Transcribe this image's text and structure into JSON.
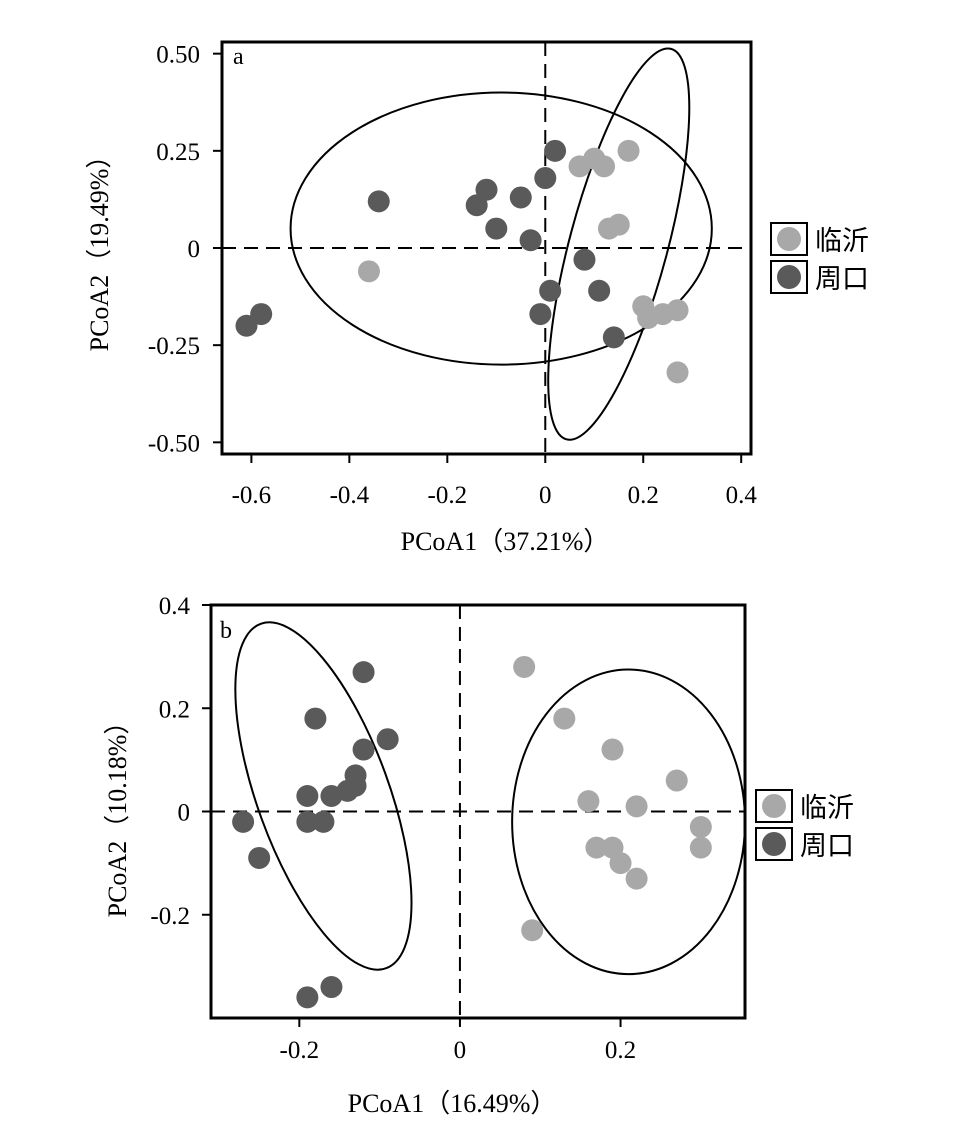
{
  "chart_data": [
    {
      "type": "scatter",
      "panel_label": "a",
      "xlabel": "PCoA1（37.21%）",
      "ylabel": "PCoA2（19.49%）",
      "xlim": [
        -0.66,
        0.42
      ],
      "ylim": [
        -0.53,
        0.53
      ],
      "xticks": [
        -0.6,
        -0.4,
        -0.2,
        0,
        0.2,
        0.4
      ],
      "xtick_labels": [
        "-0.6",
        "-0.4",
        "-0.2",
        "0",
        "0.2",
        "0.4"
      ],
      "yticks": [
        0.5,
        0.25,
        0,
        -0.25,
        -0.5
      ],
      "ytick_labels": [
        "0.50",
        "0.25",
        "0",
        "-0.25",
        "-0.50"
      ],
      "reference_lines": {
        "x": 0,
        "y": 0,
        "style": "dashed"
      },
      "legend": {
        "placement": "right",
        "entries": [
          "临沂",
          "周口"
        ]
      },
      "series": [
        {
          "name": "临沂",
          "color": "#a8a8a8",
          "points": [
            [
              0.07,
              0.21
            ],
            [
              0.1,
              0.23
            ],
            [
              0.12,
              0.21
            ],
            [
              0.17,
              0.25
            ],
            [
              0.13,
              0.05
            ],
            [
              0.15,
              0.06
            ],
            [
              0.2,
              -0.15
            ],
            [
              0.21,
              -0.18
            ],
            [
              0.24,
              -0.17
            ],
            [
              0.27,
              -0.16
            ],
            [
              0.27,
              -0.32
            ],
            [
              -0.36,
              -0.06
            ]
          ]
        },
        {
          "name": "周口",
          "color": "#5a5a5a",
          "points": [
            [
              0.02,
              0.25
            ],
            [
              0.0,
              0.18
            ],
            [
              -0.12,
              0.15
            ],
            [
              -0.05,
              0.13
            ],
            [
              -0.14,
              0.11
            ],
            [
              -0.34,
              0.12
            ],
            [
              -0.1,
              0.05
            ],
            [
              -0.03,
              0.02
            ],
            [
              0.08,
              -0.03
            ],
            [
              0.11,
              -0.11
            ],
            [
              0.01,
              -0.11
            ],
            [
              -0.01,
              -0.17
            ],
            [
              0.14,
              -0.23
            ],
            [
              -0.58,
              -0.17
            ],
            [
              -0.61,
              -0.2
            ]
          ]
        }
      ],
      "ellipses": [
        {
          "cx": -0.09,
          "cy": 0.05,
          "rx": 0.43,
          "ry": 0.35,
          "angle_deg": 0
        },
        {
          "cx": 0.15,
          "cy": 0.01,
          "rx": 0.1,
          "ry": 0.52,
          "angle_deg": 15
        }
      ]
    },
    {
      "type": "scatter",
      "panel_label": "b",
      "xlabel": "PCoA1（16.49%）",
      "ylabel": "PCoA2（10.18%）",
      "xlim": [
        -0.31,
        0.355
      ],
      "ylim": [
        -0.4,
        0.4
      ],
      "xticks": [
        -0.2,
        0,
        0.2
      ],
      "xtick_labels": [
        "-0.2",
        "0",
        "0.2"
      ],
      "yticks": [
        0.4,
        0.2,
        0,
        -0.2
      ],
      "ytick_labels": [
        "0.4",
        "0.2",
        "0",
        "-0.2"
      ],
      "reference_lines": {
        "x": 0,
        "y": 0,
        "style": "dashed"
      },
      "legend": {
        "placement": "right",
        "entries": [
          "临沂",
          "周口"
        ]
      },
      "series": [
        {
          "name": "临沂",
          "color": "#a8a8a8",
          "points": [
            [
              0.08,
              0.28
            ],
            [
              0.13,
              0.18
            ],
            [
              0.19,
              0.12
            ],
            [
              0.27,
              0.06
            ],
            [
              0.16,
              0.02
            ],
            [
              0.22,
              0.01
            ],
            [
              0.3,
              -0.03
            ],
            [
              0.3,
              -0.07
            ],
            [
              0.17,
              -0.07
            ],
            [
              0.19,
              -0.07
            ],
            [
              0.2,
              -0.1
            ],
            [
              0.22,
              -0.13
            ],
            [
              0.09,
              -0.23
            ]
          ]
        },
        {
          "name": "周口",
          "color": "#5a5a5a",
          "points": [
            [
              -0.12,
              0.27
            ],
            [
              -0.18,
              0.18
            ],
            [
              -0.09,
              0.14
            ],
            [
              -0.12,
              0.12
            ],
            [
              -0.13,
              0.07
            ],
            [
              -0.13,
              0.05
            ],
            [
              -0.14,
              0.04
            ],
            [
              -0.19,
              0.03
            ],
            [
              -0.16,
              0.03
            ],
            [
              -0.19,
              -0.02
            ],
            [
              -0.17,
              -0.02
            ],
            [
              -0.27,
              -0.02
            ],
            [
              -0.25,
              -0.09
            ],
            [
              -0.16,
              -0.34
            ],
            [
              -0.19,
              -0.36
            ]
          ]
        }
      ],
      "ellipses": [
        {
          "cx": -0.17,
          "cy": 0.03,
          "rx": 0.082,
          "ry": 0.355,
          "angle_deg": -20
        },
        {
          "cx": 0.21,
          "cy": -0.02,
          "rx": 0.145,
          "ry": 0.295,
          "angle_deg": 0
        }
      ]
    }
  ]
}
